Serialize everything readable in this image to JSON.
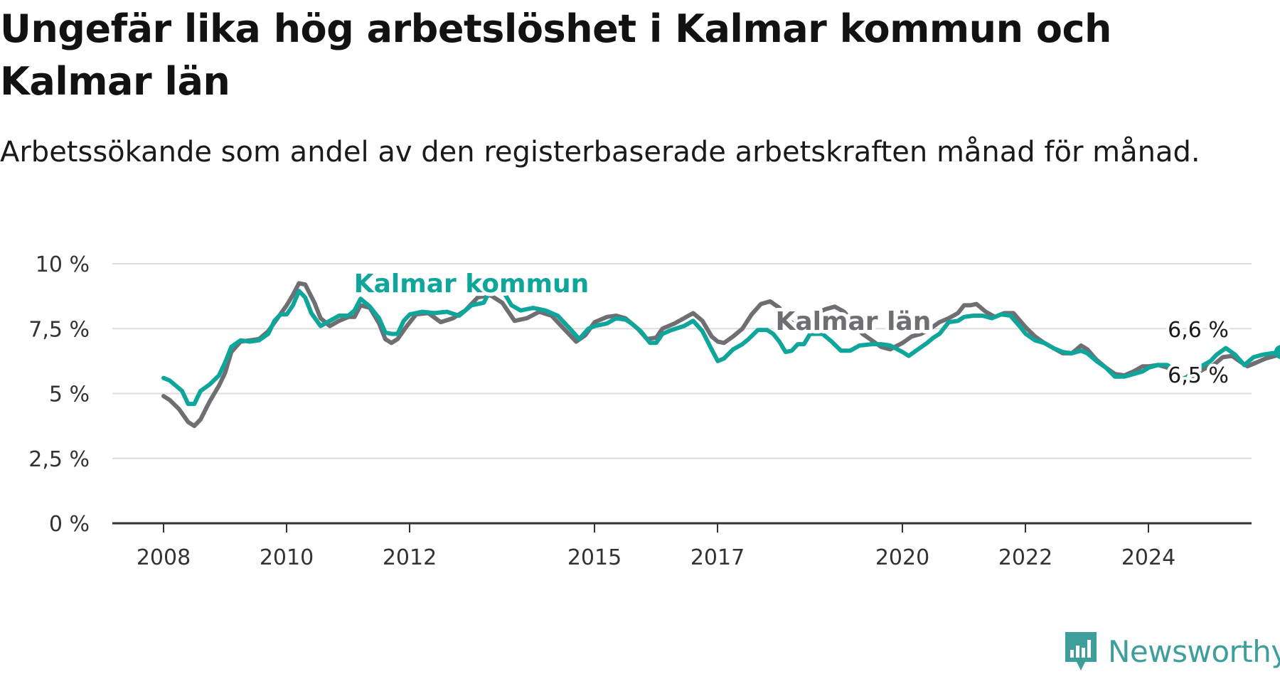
{
  "title": "Ungefär lika hög arbetslöshet i Kalmar kommun och Kalmar län",
  "subtitle": "Arbetssökande som andel av den registerbaserade arbetskraften månad för månad.",
  "brand": {
    "name": "Newsworthy",
    "icon": "newsworthy-logo-icon",
    "color": "#3d9e9b"
  },
  "colors": {
    "kommun": "#0ea59b",
    "lan": "#6e6e73",
    "grid": "#dddddd",
    "axis": "#333333"
  },
  "chart_data": {
    "type": "line",
    "title": "Ungefär lika hög arbetslöshet i Kalmar kommun och Kalmar län",
    "subtitle": "Arbetssökande som andel av den registerbaserade arbetskraften månad för månad.",
    "xlabel": "",
    "ylabel": "",
    "xlim": [
      2008,
      2025.5
    ],
    "ylim": [
      0,
      10
    ],
    "grid": true,
    "x_ticks": [
      2008,
      2010,
      2012,
      2015,
      2017,
      2020,
      2022,
      2024
    ],
    "x_tick_labels": [
      "2008",
      "2010",
      "2012",
      "2015",
      "2017",
      "2020",
      "2022",
      "2024"
    ],
    "y_ticks": [
      0,
      2.5,
      5,
      7.5,
      10
    ],
    "y_tick_labels": [
      "0 %",
      "2,5 %",
      "5 %",
      "7,5 %",
      "10 %"
    ],
    "series": [
      {
        "name": "Kalmar kommun",
        "color": "#0ea59b",
        "end_label": "6,6 %",
        "points": [
          [
            2008.0,
            5.6
          ],
          [
            2008.1,
            5.5
          ],
          [
            2008.2,
            5.3
          ],
          [
            2008.3,
            5.1
          ],
          [
            2008.4,
            4.6
          ],
          [
            2008.5,
            4.6
          ],
          [
            2008.6,
            5.1
          ],
          [
            2008.75,
            5.35
          ],
          [
            2008.9,
            5.7
          ],
          [
            2009.0,
            6.2
          ],
          [
            2009.1,
            6.8
          ],
          [
            2009.25,
            7.05
          ],
          [
            2009.4,
            7.0
          ],
          [
            2009.55,
            7.05
          ],
          [
            2009.7,
            7.3
          ],
          [
            2009.8,
            7.8
          ],
          [
            2009.9,
            8.05
          ],
          [
            2010.0,
            8.05
          ],
          [
            2010.1,
            8.4
          ],
          [
            2010.2,
            8.95
          ],
          [
            2010.3,
            8.7
          ],
          [
            2010.4,
            8.1
          ],
          [
            2010.55,
            7.6
          ],
          [
            2010.7,
            7.8
          ],
          [
            2010.85,
            8.0
          ],
          [
            2011.0,
            8.0
          ],
          [
            2011.1,
            8.2
          ],
          [
            2011.2,
            8.65
          ],
          [
            2011.35,
            8.35
          ],
          [
            2011.5,
            7.9
          ],
          [
            2011.6,
            7.35
          ],
          [
            2011.7,
            7.3
          ],
          [
            2011.8,
            7.3
          ],
          [
            2011.9,
            7.8
          ],
          [
            2012.0,
            8.05
          ],
          [
            2012.2,
            8.15
          ],
          [
            2012.4,
            8.1
          ],
          [
            2012.6,
            8.15
          ],
          [
            2012.8,
            8.0
          ],
          [
            2013.0,
            8.4
          ],
          [
            2013.2,
            8.5
          ],
          [
            2013.35,
            9.2
          ],
          [
            2013.5,
            9.0
          ],
          [
            2013.65,
            8.4
          ],
          [
            2013.8,
            8.2
          ],
          [
            2014.0,
            8.3
          ],
          [
            2014.2,
            8.2
          ],
          [
            2014.4,
            8.0
          ],
          [
            2014.6,
            7.5
          ],
          [
            2014.75,
            7.1
          ],
          [
            2014.9,
            7.5
          ],
          [
            2015.0,
            7.6
          ],
          [
            2015.2,
            7.7
          ],
          [
            2015.35,
            7.9
          ],
          [
            2015.5,
            7.85
          ],
          [
            2015.6,
            7.7
          ],
          [
            2015.75,
            7.4
          ],
          [
            2015.9,
            6.95
          ],
          [
            2016.0,
            6.95
          ],
          [
            2016.1,
            7.3
          ],
          [
            2016.25,
            7.45
          ],
          [
            2016.45,
            7.6
          ],
          [
            2016.6,
            7.8
          ],
          [
            2016.75,
            7.4
          ],
          [
            2016.9,
            6.7
          ],
          [
            2017.0,
            6.25
          ],
          [
            2017.1,
            6.35
          ],
          [
            2017.25,
            6.7
          ],
          [
            2017.4,
            6.9
          ],
          [
            2017.5,
            7.1
          ],
          [
            2017.65,
            7.45
          ],
          [
            2017.8,
            7.45
          ],
          [
            2017.9,
            7.3
          ],
          [
            2018.0,
            7.0
          ],
          [
            2018.1,
            6.6
          ],
          [
            2018.2,
            6.65
          ],
          [
            2018.3,
            6.9
          ],
          [
            2018.4,
            6.9
          ],
          [
            2018.5,
            7.3
          ],
          [
            2018.7,
            7.3
          ],
          [
            2018.85,
            7.0
          ],
          [
            2019.0,
            6.65
          ],
          [
            2019.15,
            6.65
          ],
          [
            2019.3,
            6.85
          ],
          [
            2019.5,
            6.9
          ],
          [
            2019.65,
            6.9
          ],
          [
            2019.8,
            6.85
          ],
          [
            2020.0,
            6.6
          ],
          [
            2020.1,
            6.45
          ],
          [
            2020.25,
            6.7
          ],
          [
            2020.4,
            6.95
          ],
          [
            2020.5,
            7.15
          ],
          [
            2020.6,
            7.3
          ],
          [
            2020.75,
            7.75
          ],
          [
            2020.9,
            7.8
          ],
          [
            2021.0,
            7.95
          ],
          [
            2021.15,
            8.0
          ],
          [
            2021.3,
            8.0
          ],
          [
            2021.45,
            7.9
          ],
          [
            2021.6,
            8.05
          ],
          [
            2021.75,
            8.0
          ],
          [
            2021.9,
            7.6
          ],
          [
            2022.0,
            7.3
          ],
          [
            2022.15,
            7.05
          ],
          [
            2022.3,
            6.95
          ],
          [
            2022.45,
            6.75
          ],
          [
            2022.6,
            6.6
          ],
          [
            2022.75,
            6.55
          ],
          [
            2022.9,
            6.65
          ],
          [
            2023.0,
            6.55
          ],
          [
            2023.15,
            6.25
          ],
          [
            2023.3,
            6.0
          ],
          [
            2023.45,
            5.65
          ],
          [
            2023.6,
            5.65
          ],
          [
            2023.75,
            5.75
          ],
          [
            2023.9,
            5.85
          ],
          [
            2024.0,
            6.0
          ],
          [
            2024.15,
            6.1
          ],
          [
            2024.3,
            6.1
          ],
          [
            2024.45,
            5.85
          ],
          [
            2024.55,
            5.55
          ],
          [
            2024.7,
            5.75
          ],
          [
            2024.85,
            6.05
          ],
          [
            2025.0,
            6.25
          ],
          [
            2025.1,
            6.5
          ],
          [
            2025.25,
            6.75
          ],
          [
            2025.4,
            6.5
          ],
          [
            2025.55,
            6.1
          ],
          [
            2025.7,
            6.4
          ],
          [
            2025.85,
            6.5
          ],
          [
            2026.0,
            6.55
          ],
          [
            2026.15,
            6.6
          ]
        ]
      },
      {
        "name": "Kalmar län",
        "color": "#6e6e73",
        "end_label": "6,5 %",
        "points": [
          [
            2008.0,
            4.9
          ],
          [
            2008.1,
            4.75
          ],
          [
            2008.25,
            4.4
          ],
          [
            2008.4,
            3.9
          ],
          [
            2008.5,
            3.75
          ],
          [
            2008.6,
            4.0
          ],
          [
            2008.75,
            4.7
          ],
          [
            2008.9,
            5.3
          ],
          [
            2009.0,
            5.8
          ],
          [
            2009.1,
            6.6
          ],
          [
            2009.25,
            7.0
          ],
          [
            2009.4,
            7.05
          ],
          [
            2009.55,
            7.1
          ],
          [
            2009.7,
            7.4
          ],
          [
            2009.85,
            7.9
          ],
          [
            2010.0,
            8.4
          ],
          [
            2010.1,
            8.8
          ],
          [
            2010.2,
            9.25
          ],
          [
            2010.3,
            9.2
          ],
          [
            2010.45,
            8.5
          ],
          [
            2010.55,
            7.9
          ],
          [
            2010.7,
            7.6
          ],
          [
            2010.85,
            7.8
          ],
          [
            2011.0,
            7.95
          ],
          [
            2011.1,
            7.95
          ],
          [
            2011.2,
            8.4
          ],
          [
            2011.35,
            8.3
          ],
          [
            2011.5,
            7.7
          ],
          [
            2011.6,
            7.1
          ],
          [
            2011.7,
            6.95
          ],
          [
            2011.8,
            7.1
          ],
          [
            2011.95,
            7.6
          ],
          [
            2012.1,
            8.05
          ],
          [
            2012.3,
            8.1
          ],
          [
            2012.5,
            7.75
          ],
          [
            2012.7,
            7.9
          ],
          [
            2012.9,
            8.2
          ],
          [
            2013.1,
            8.7
          ],
          [
            2013.3,
            8.8
          ],
          [
            2013.5,
            8.5
          ],
          [
            2013.7,
            7.8
          ],
          [
            2013.9,
            7.9
          ],
          [
            2014.1,
            8.15
          ],
          [
            2014.3,
            8.0
          ],
          [
            2014.5,
            7.5
          ],
          [
            2014.7,
            7.0
          ],
          [
            2014.85,
            7.25
          ],
          [
            2015.0,
            7.75
          ],
          [
            2015.2,
            7.95
          ],
          [
            2015.35,
            8.0
          ],
          [
            2015.5,
            7.9
          ],
          [
            2015.7,
            7.5
          ],
          [
            2015.85,
            7.1
          ],
          [
            2016.0,
            7.15
          ],
          [
            2016.1,
            7.5
          ],
          [
            2016.3,
            7.7
          ],
          [
            2016.45,
            7.9
          ],
          [
            2016.6,
            8.1
          ],
          [
            2016.75,
            7.8
          ],
          [
            2016.9,
            7.2
          ],
          [
            2017.0,
            7.0
          ],
          [
            2017.1,
            6.95
          ],
          [
            2017.25,
            7.2
          ],
          [
            2017.4,
            7.5
          ],
          [
            2017.55,
            8.05
          ],
          [
            2017.7,
            8.45
          ],
          [
            2017.85,
            8.55
          ],
          [
            2018.0,
            8.3
          ],
          [
            2018.15,
            7.8
          ],
          [
            2018.3,
            7.6
          ],
          [
            2018.45,
            7.8
          ],
          [
            2018.6,
            8.1
          ],
          [
            2018.75,
            8.25
          ],
          [
            2018.9,
            8.35
          ],
          [
            2019.05,
            8.15
          ],
          [
            2019.2,
            7.75
          ],
          [
            2019.35,
            7.3
          ],
          [
            2019.5,
            7.05
          ],
          [
            2019.65,
            6.8
          ],
          [
            2019.8,
            6.7
          ],
          [
            2020.0,
            6.95
          ],
          [
            2020.15,
            7.2
          ],
          [
            2020.3,
            7.3
          ],
          [
            2020.45,
            7.5
          ],
          [
            2020.6,
            7.75
          ],
          [
            2020.75,
            7.9
          ],
          [
            2020.9,
            8.1
          ],
          [
            2021.0,
            8.4
          ],
          [
            2021.1,
            8.4
          ],
          [
            2021.2,
            8.45
          ],
          [
            2021.35,
            8.15
          ],
          [
            2021.5,
            7.95
          ],
          [
            2021.65,
            8.1
          ],
          [
            2021.8,
            8.1
          ],
          [
            2022.0,
            7.55
          ],
          [
            2022.15,
            7.2
          ],
          [
            2022.3,
            6.95
          ],
          [
            2022.45,
            6.75
          ],
          [
            2022.6,
            6.55
          ],
          [
            2022.75,
            6.55
          ],
          [
            2022.9,
            6.85
          ],
          [
            2023.0,
            6.7
          ],
          [
            2023.15,
            6.3
          ],
          [
            2023.3,
            6.0
          ],
          [
            2023.45,
            5.75
          ],
          [
            2023.6,
            5.7
          ],
          [
            2023.75,
            5.85
          ],
          [
            2023.9,
            6.05
          ],
          [
            2024.0,
            6.05
          ],
          [
            2024.15,
            6.1
          ],
          [
            2024.3,
            6.0
          ],
          [
            2024.45,
            5.65
          ],
          [
            2024.6,
            5.5
          ],
          [
            2024.75,
            5.75
          ],
          [
            2024.9,
            5.95
          ],
          [
            2025.05,
            6.1
          ],
          [
            2025.2,
            6.4
          ],
          [
            2025.35,
            6.45
          ],
          [
            2025.5,
            6.2
          ],
          [
            2025.6,
            6.05
          ],
          [
            2025.75,
            6.2
          ],
          [
            2025.9,
            6.35
          ],
          [
            2026.05,
            6.45
          ],
          [
            2026.15,
            6.5
          ]
        ]
      }
    ],
    "annotations": [
      {
        "text": "Kalmar kommun",
        "series": "Kalmar kommun",
        "x": 2013.0,
        "y": 8.9
      },
      {
        "text": "Kalmar län",
        "series": "Kalmar län",
        "x": 2019.2,
        "y": 7.45
      }
    ]
  }
}
